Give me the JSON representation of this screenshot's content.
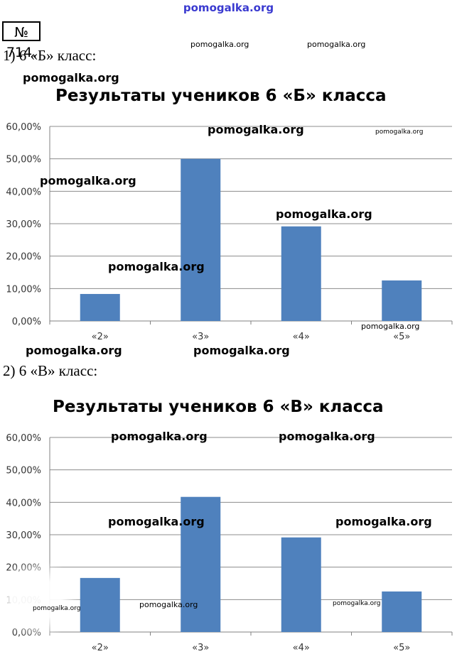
{
  "header": {
    "site": "pomogalka.org"
  },
  "problem": {
    "number": "№ 714."
  },
  "parts": [
    {
      "label": "1) 6 «Б» класс:"
    },
    {
      "label": "2) 6 «В» класс:"
    }
  ],
  "watermark": "pomogalka.org",
  "chart_data": [
    {
      "type": "bar",
      "title": "Результаты учеников 6 «Б» класса",
      "categories": [
        "«2»",
        "«3»",
        "«4»",
        "«5»"
      ],
      "values": [
        8.33,
        50.0,
        29.17,
        12.5
      ],
      "ylim": [
        0,
        60
      ],
      "y_ticks": [
        "0,00%",
        "10,00%",
        "20,00%",
        "30,00%",
        "40,00%",
        "50,00%",
        "60,00%"
      ],
      "grid": true,
      "bar_color": "#4f81bd"
    },
    {
      "type": "bar",
      "title": "Результаты учеников 6 «В» класса",
      "categories": [
        "«2»",
        "«3»",
        "«4»",
        "«5»"
      ],
      "values": [
        16.67,
        41.67,
        29.17,
        12.5
      ],
      "ylim": [
        0,
        60
      ],
      "y_ticks": [
        "0,00%",
        "10,00%",
        "20,00%",
        "30,00%",
        "40,00%",
        "50,00%",
        "60,00%"
      ],
      "grid": true,
      "bar_color": "#4f81bd"
    }
  ]
}
